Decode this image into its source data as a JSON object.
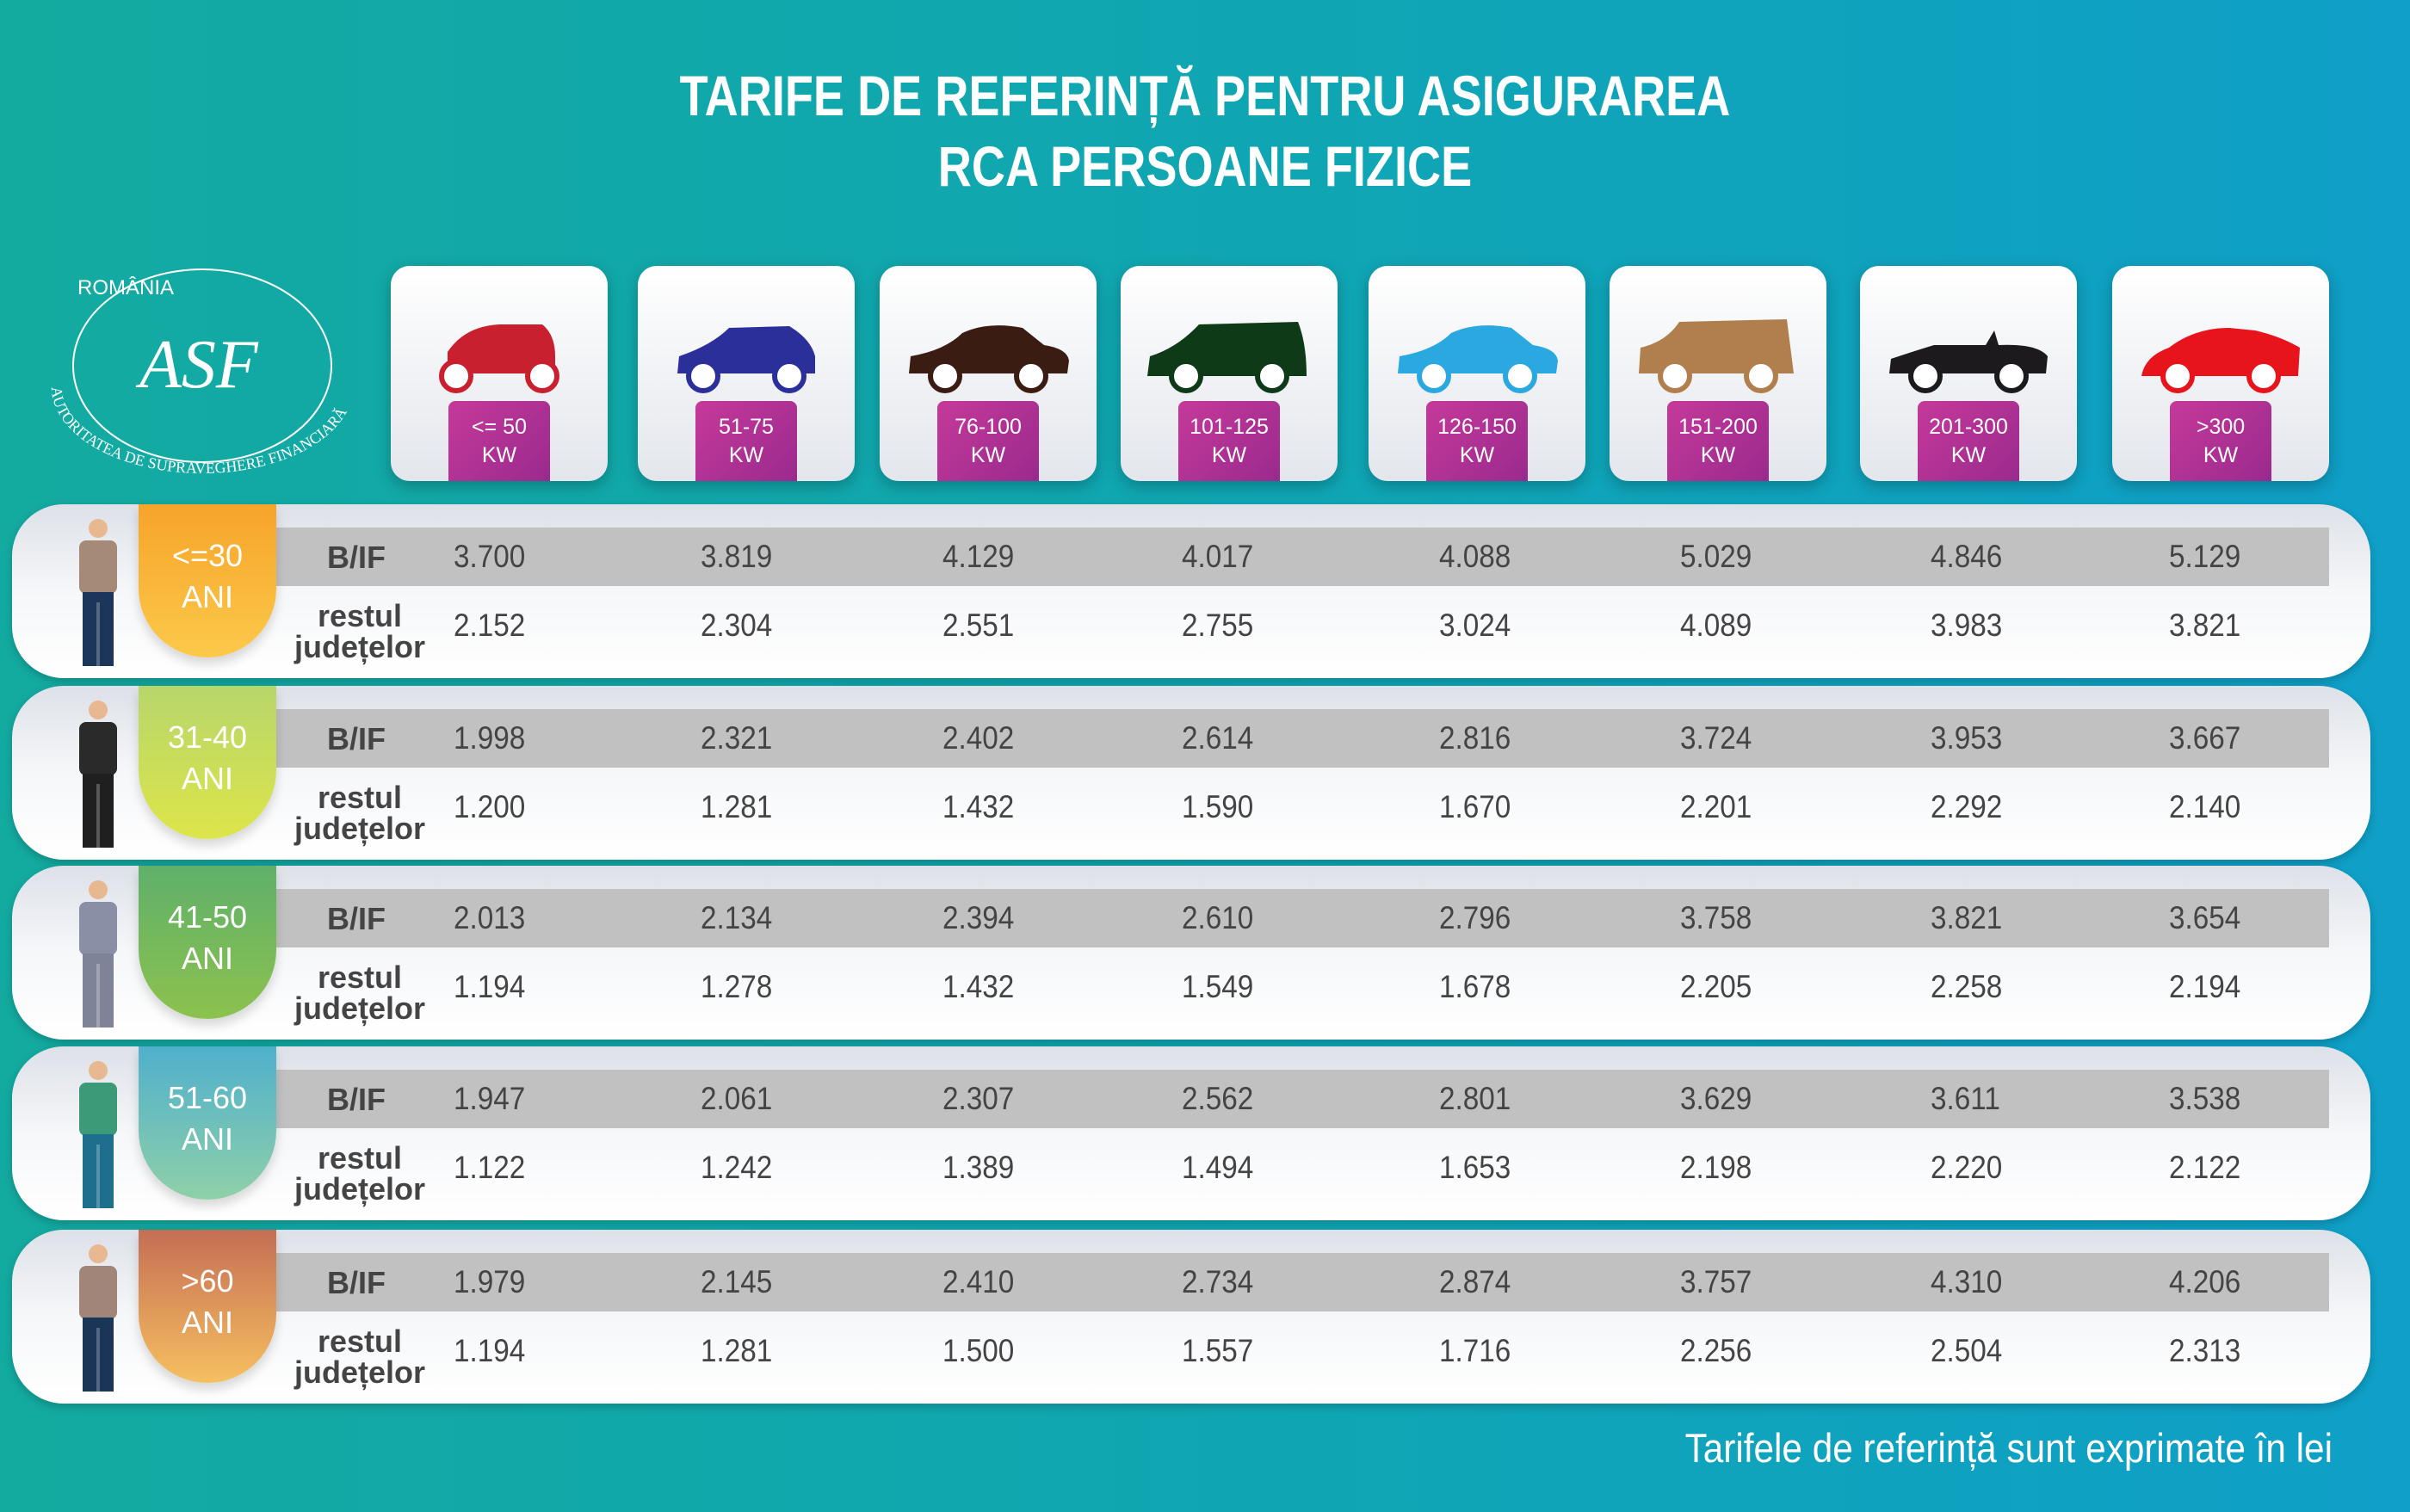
{
  "title": {
    "line1": "TARIFE DE REFERINȚĂ PENTRU ASIGURAREA",
    "line2": "RCA PERSOANE FIZICE"
  },
  "logo": {
    "text_top": "ROMÂNIA",
    "text_arc": "AUTORITATEA DE SUPRAVEGHERE FINANCIARĂ",
    "monogram": "ASF"
  },
  "columns": [
    {
      "range": "<= 50",
      "unit": "KW",
      "car_icon": "hatchback-small-icon",
      "color": "#c8202f"
    },
    {
      "range": "51-75",
      "unit": "KW",
      "car_icon": "hatchback-icon",
      "color": "#2b2f9a"
    },
    {
      "range": "76-100",
      "unit": "KW",
      "car_icon": "sedan-icon",
      "color": "#3b1c12"
    },
    {
      "range": "101-125",
      "unit": "KW",
      "car_icon": "minivan-icon",
      "color": "#0f3a18"
    },
    {
      "range": "126-150",
      "unit": "KW",
      "car_icon": "sedan-icon",
      "color": "#2aa8e0"
    },
    {
      "range": "151-200",
      "unit": "KW",
      "car_icon": "suv-icon",
      "color": "#b07f4d"
    },
    {
      "range": "201-300",
      "unit": "KW",
      "car_icon": "convertible-icon",
      "color": "#1c1a1c"
    },
    {
      "range": ">300",
      "unit": "KW",
      "car_icon": "sports-car-icon",
      "color": "#e8141c"
    }
  ],
  "row_labels": {
    "bif": "B/IF",
    "rest1": "restul",
    "rest2": "județelor"
  },
  "rows": [
    {
      "age": "<=30",
      "unit": "ANI",
      "colors": [
        "#f6a42a",
        "#fcc94a"
      ],
      "jacket": "#a58a78",
      "pants": "#1b3658",
      "bif": [
        "3.700",
        "3.819",
        "4.129",
        "4.017",
        "4.088",
        "5.029",
        "4.846",
        "5.129"
      ],
      "rest": [
        "2.152",
        "2.304",
        "2.551",
        "2.755",
        "3.024",
        "4.089",
        "3.983",
        "3.821"
      ]
    },
    {
      "age": "31-40",
      "unit": "ANI",
      "colors": [
        "#b7d66b",
        "#dde54a"
      ],
      "jacket": "#2a2a2a",
      "pants": "#1f1f1f",
      "bif": [
        "1.998",
        "2.321",
        "2.402",
        "2.614",
        "2.816",
        "3.724",
        "3.953",
        "3.667"
      ],
      "rest": [
        "1.200",
        "1.281",
        "1.432",
        "1.590",
        "1.670",
        "2.201",
        "2.292",
        "2.140"
      ]
    },
    {
      "age": "41-50",
      "unit": "ANI",
      "colors": [
        "#5fb06a",
        "#8cc24e"
      ],
      "jacket": "#8a8fa6",
      "pants": "#7e8398",
      "bif": [
        "2.013",
        "2.134",
        "2.394",
        "2.610",
        "2.796",
        "3.758",
        "3.821",
        "3.654"
      ],
      "rest": [
        "1.194",
        "1.278",
        "1.432",
        "1.549",
        "1.678",
        "2.205",
        "2.258",
        "2.194"
      ]
    },
    {
      "age": "51-60",
      "unit": "ANI",
      "colors": [
        "#4fb0cc",
        "#8fd0a8"
      ],
      "jacket": "#3c9a78",
      "pants": "#1e6f8e",
      "bif": [
        "1.947",
        "2.061",
        "2.307",
        "2.562",
        "2.801",
        "3.629",
        "3.611",
        "3.538"
      ],
      "rest": [
        "1.122",
        "1.242",
        "1.389",
        "1.494",
        "1.653",
        "2.198",
        "2.220",
        "2.122"
      ]
    },
    {
      "age": ">60",
      "unit": "ANI",
      "colors": [
        "#c56e54",
        "#f6c060"
      ],
      "jacket": "#a08578",
      "pants": "#1b3556",
      "bif": [
        "1.979",
        "2.145",
        "2.410",
        "2.734",
        "2.874",
        "3.757",
        "4.310",
        "4.206"
      ],
      "rest": [
        "1.194",
        "1.281",
        "1.500",
        "1.557",
        "1.716",
        "2.256",
        "2.504",
        "2.313"
      ]
    }
  ],
  "footer": "Tarifele de referință sunt exprimate în lei"
}
